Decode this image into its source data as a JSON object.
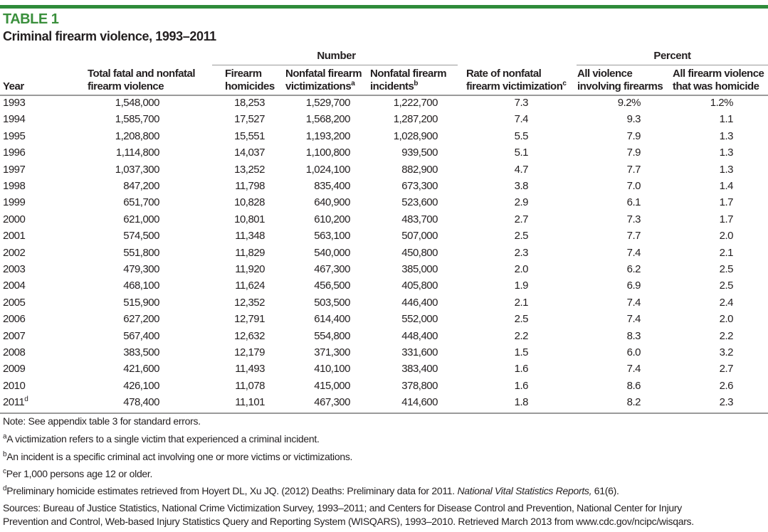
{
  "table_label": "TABLE 1",
  "title": "Criminal firearm violence, 1993–2011",
  "group_headers": {
    "number": "Number",
    "percent": "Percent"
  },
  "columns": [
    {
      "line1": "",
      "line2": "Year",
      "sup": ""
    },
    {
      "line1": "Total fatal and nonfatal",
      "line2": "firearm violence",
      "sup": ""
    },
    {
      "line1": "Firearm",
      "line2": "homicides",
      "sup": ""
    },
    {
      "line1": "Nonfatal firearm",
      "line2": "victimizations",
      "sup": "a"
    },
    {
      "line1": "Nonfatal firearm",
      "line2": "incidents",
      "sup": "b"
    },
    {
      "line1": "Rate of nonfatal",
      "line2": "firearm victimization",
      "sup": "c"
    },
    {
      "line1": "All violence",
      "line2": "involving firearms",
      "sup": ""
    },
    {
      "line1": "All firearm violence",
      "line2": "that was homicide",
      "sup": ""
    }
  ],
  "rows": [
    {
      "year": "1993",
      "sup": "",
      "v": [
        "1,548,000",
        "18,253",
        "1,529,700",
        "1,222,700",
        "7.3",
        "9.2%",
        "1.2%"
      ]
    },
    {
      "year": "1994",
      "sup": "",
      "v": [
        "1,585,700",
        "17,527",
        "1,568,200",
        "1,287,200",
        "7.4",
        "9.3",
        "1.1"
      ]
    },
    {
      "year": "1995",
      "sup": "",
      "v": [
        "1,208,800",
        "15,551",
        "1,193,200",
        "1,028,900",
        "5.5",
        "7.9",
        "1.3"
      ]
    },
    {
      "year": "1996",
      "sup": "",
      "v": [
        "1,114,800",
        "14,037",
        "1,100,800",
        "939,500",
        "5.1",
        "7.9",
        "1.3"
      ]
    },
    {
      "year": "1997",
      "sup": "",
      "v": [
        "1,037,300",
        "13,252",
        "1,024,100",
        "882,900",
        "4.7",
        "7.7",
        "1.3"
      ]
    },
    {
      "year": "1998",
      "sup": "",
      "v": [
        "847,200",
        "11,798",
        "835,400",
        "673,300",
        "3.8",
        "7.0",
        "1.4"
      ]
    },
    {
      "year": "1999",
      "sup": "",
      "v": [
        "651,700",
        "10,828",
        "640,900",
        "523,600",
        "2.9",
        "6.1",
        "1.7"
      ]
    },
    {
      "year": "2000",
      "sup": "",
      "v": [
        "621,000",
        "10,801",
        "610,200",
        "483,700",
        "2.7",
        "7.3",
        "1.7"
      ]
    },
    {
      "year": "2001",
      "sup": "",
      "v": [
        "574,500",
        "11,348",
        "563,100",
        "507,000",
        "2.5",
        "7.7",
        "2.0"
      ]
    },
    {
      "year": "2002",
      "sup": "",
      "v": [
        "551,800",
        "11,829",
        "540,000",
        "450,800",
        "2.3",
        "7.4",
        "2.1"
      ]
    },
    {
      "year": "2003",
      "sup": "",
      "v": [
        "479,300",
        "11,920",
        "467,300",
        "385,000",
        "2.0",
        "6.2",
        "2.5"
      ]
    },
    {
      "year": "2004",
      "sup": "",
      "v": [
        "468,100",
        "11,624",
        "456,500",
        "405,800",
        "1.9",
        "6.9",
        "2.5"
      ]
    },
    {
      "year": "2005",
      "sup": "",
      "v": [
        "515,900",
        "12,352",
        "503,500",
        "446,400",
        "2.1",
        "7.4",
        "2.4"
      ]
    },
    {
      "year": "2006",
      "sup": "",
      "v": [
        "627,200",
        "12,791",
        "614,400",
        "552,000",
        "2.5",
        "7.4",
        "2.0"
      ]
    },
    {
      "year": "2007",
      "sup": "",
      "v": [
        "567,400",
        "12,632",
        "554,800",
        "448,400",
        "2.2",
        "8.3",
        "2.2"
      ]
    },
    {
      "year": "2008",
      "sup": "",
      "v": [
        "383,500",
        "12,179",
        "371,300",
        "331,600",
        "1.5",
        "6.0",
        "3.2"
      ]
    },
    {
      "year": "2009",
      "sup": "",
      "v": [
        "421,600",
        "11,493",
        "410,100",
        "383,400",
        "1.6",
        "7.4",
        "2.7"
      ]
    },
    {
      "year": "2010",
      "sup": "",
      "v": [
        "426,100",
        "11,078",
        "415,000",
        "378,800",
        "1.6",
        "8.6",
        "2.6"
      ]
    },
    {
      "year": "2011",
      "sup": "d",
      "v": [
        "478,400",
        "11,101",
        "467,300",
        "414,600",
        "1.8",
        "8.2",
        "2.3"
      ]
    }
  ],
  "notes": {
    "note": "Note: See appendix table 3 for standard errors.",
    "a": {
      "mark": "a",
      "text": "A victimization refers to a single victim that experienced a criminal incident."
    },
    "b": {
      "mark": "b",
      "text": "An incident is a specific criminal act involving one or more victims or victimizations."
    },
    "c": {
      "mark": "c",
      "text": "Per 1,000 persons age 12 or older."
    },
    "d": {
      "mark": "d",
      "text": "Preliminary homicide estimates retrieved from Hoyert DL, Xu JQ. (2012) Deaths: Preliminary data for 2011. ",
      "italic": "National Vital Statistics Reports,",
      "tail": " 61(6)."
    },
    "sources_1": "Sources: Bureau of Justice Statistics, National Crime Victimization Survey, 1993–2011; and Centers for Disease Control and Prevention, National Center for Injury",
    "sources_2": "Prevention and Control, Web-based Injury Statistics Query and Reporting System (WISQARS), 1993–2010. Retrieved March 2013 from www.cdc.gov/ncipc/wisqars."
  },
  "colors": {
    "accent": "#3a8f3c",
    "rule": "#9a9a9a"
  }
}
